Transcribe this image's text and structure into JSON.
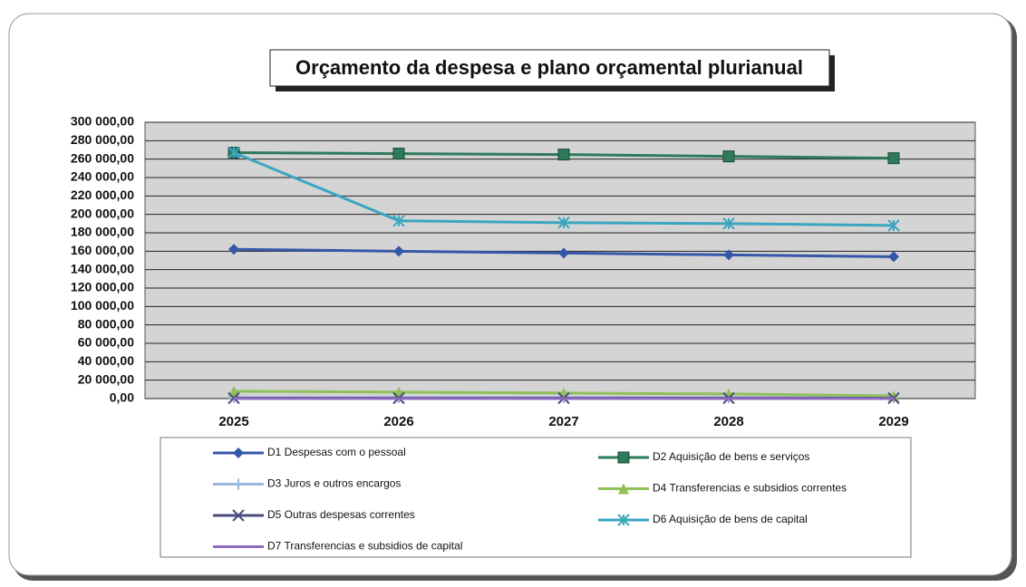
{
  "chart_data": {
    "type": "line",
    "title": "Orçamento da despesa e plano orçamental plurianual",
    "categories": [
      "2025",
      "2026",
      "2027",
      "2028",
      "2029"
    ],
    "ylim": [
      0,
      300000
    ],
    "yticks": [
      {
        "value": 0,
        "label": "0,00"
      },
      {
        "value": 20000,
        "label": "20 000,00"
      },
      {
        "value": 40000,
        "label": "40 000,00"
      },
      {
        "value": 60000,
        "label": "60 000,00"
      },
      {
        "value": 80000,
        "label": "80 000,00"
      },
      {
        "value": 100000,
        "label": "100 000,00"
      },
      {
        "value": 120000,
        "label": "120 000,00"
      },
      {
        "value": 140000,
        "label": "140 000,00"
      },
      {
        "value": 160000,
        "label": "160 000,00"
      },
      {
        "value": 180000,
        "label": "180 000,00"
      },
      {
        "value": 200000,
        "label": "200 000,00"
      },
      {
        "value": 220000,
        "label": "220 000,00"
      },
      {
        "value": 240000,
        "label": "240 000,00"
      },
      {
        "value": 260000,
        "label": "260 000,00"
      },
      {
        "value": 280000,
        "label": "280 000,00"
      },
      {
        "value": 300000,
        "label": "300 000,00"
      }
    ],
    "grid": true,
    "series": [
      {
        "name": "D1 Despesas com o pessoal",
        "color": "#3557a8",
        "marker": "diamond",
        "values": [
          162000,
          160000,
          158000,
          156000,
          154000
        ]
      },
      {
        "name": "D2 Aquisição de bens e serviços",
        "color": "#2e7a5a",
        "marker": "square",
        "values": [
          267000,
          266000,
          265000,
          263000,
          261000
        ]
      },
      {
        "name": "D3 Juros e outros encargos",
        "color": "#9ab6e0",
        "marker": "plus",
        "values": [
          1000,
          1000,
          1000,
          1000,
          1000
        ]
      },
      {
        "name": "D4 Transferencias e subsidios correntes",
        "color": "#8fc05a",
        "marker": "triangle",
        "values": [
          8000,
          7000,
          6000,
          5000,
          3000
        ]
      },
      {
        "name": "D5 Outras despesas correntes",
        "color": "#4b4b80",
        "marker": "x",
        "values": [
          500,
          500,
          500,
          500,
          500
        ]
      },
      {
        "name": "D6 Aquisição de bens de capital",
        "color": "#3aa6c0",
        "marker": "star",
        "values": [
          267000,
          193000,
          191000,
          190000,
          188000
        ]
      },
      {
        "name": "D7 Transferencias e subsidios de capital",
        "color": "#8e6bbf",
        "marker": "none",
        "values": [
          0,
          0,
          0,
          0,
          0
        ]
      }
    ]
  }
}
